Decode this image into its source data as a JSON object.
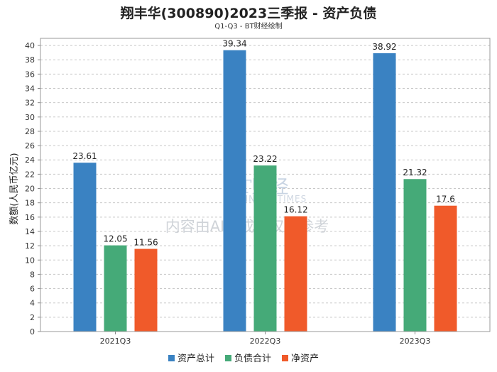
{
  "chart_data": {
    "type": "bar",
    "title": "翔丰华(300890)2023三季报 - 资产负债",
    "subtitle": "Q1-Q3 - BT财经绘制",
    "ylabel": "数额(人民币亿元)",
    "xlabel": "",
    "ylim": [
      0,
      41
    ],
    "yticks": [
      0,
      2,
      4,
      6,
      8,
      10,
      12,
      14,
      16,
      18,
      20,
      22,
      24,
      26,
      28,
      30,
      32,
      34,
      36,
      38,
      40
    ],
    "grid": true,
    "legend_position": "bottom",
    "categories": [
      "2021Q3",
      "2022Q3",
      "2023Q3"
    ],
    "series": [
      {
        "name": "资产总计",
        "color": "#3a82c2",
        "values": [
          23.61,
          39.34,
          38.92
        ]
      },
      {
        "name": "负债合计",
        "color": "#45aa78",
        "values": [
          12.05,
          23.22,
          21.32
        ]
      },
      {
        "name": "净资产",
        "color": "#f05a2a",
        "values": [
          11.56,
          16.12,
          17.6
        ]
      }
    ]
  },
  "watermark": {
    "brand": "BT财经",
    "brand_en": "BUSINESS TIMES",
    "notice": "内容由AI生成，仅供参考"
  }
}
